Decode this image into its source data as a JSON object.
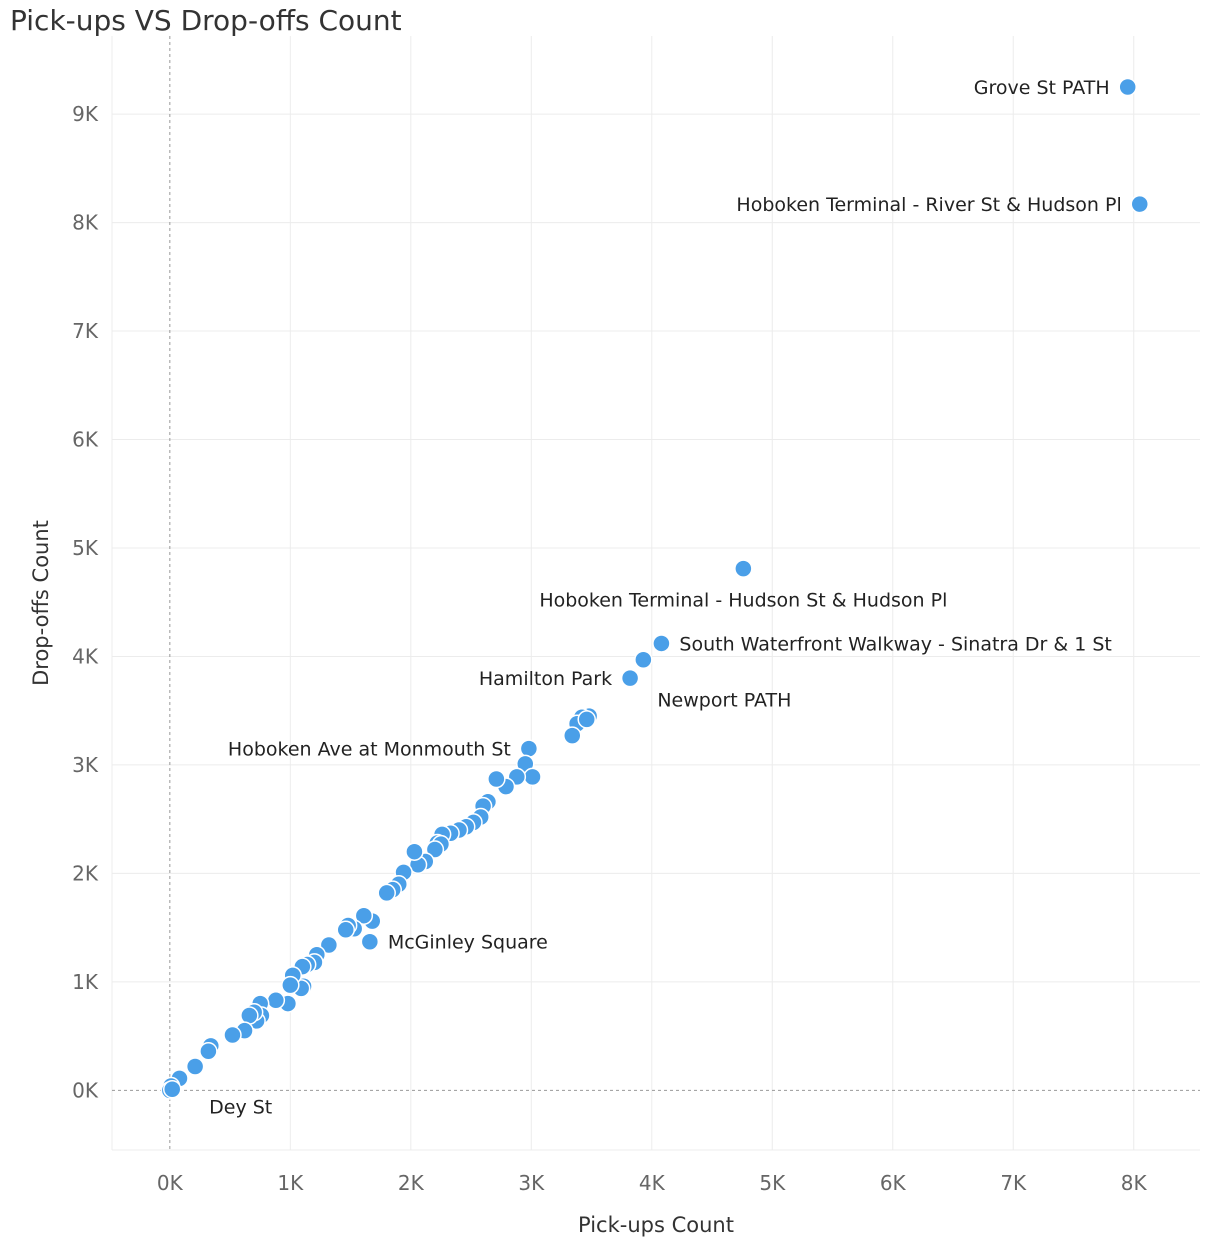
{
  "chart_data": {
    "type": "scatter",
    "title": "Pick-ups VS Drop-offs Count",
    "xlabel": "Pick-ups Count",
    "ylabel": "Drop-offs Count",
    "xlim": [
      -480,
      8550
    ],
    "ylim": [
      -550,
      9720
    ],
    "x_ticks": [
      {
        "value": 0,
        "label": "0K"
      },
      {
        "value": 1000,
        "label": "1K"
      },
      {
        "value": 2000,
        "label": "2K"
      },
      {
        "value": 3000,
        "label": "3K"
      },
      {
        "value": 4000,
        "label": "4K"
      },
      {
        "value": 5000,
        "label": "5K"
      },
      {
        "value": 6000,
        "label": "6K"
      },
      {
        "value": 7000,
        "label": "7K"
      },
      {
        "value": 8000,
        "label": "8K"
      }
    ],
    "y_ticks": [
      {
        "value": 0,
        "label": "0K"
      },
      {
        "value": 1000,
        "label": "1K"
      },
      {
        "value": 2000,
        "label": "2K"
      },
      {
        "value": 3000,
        "label": "3K"
      },
      {
        "value": 4000,
        "label": "4K"
      },
      {
        "value": 5000,
        "label": "5K"
      },
      {
        "value": 6000,
        "label": "6K"
      },
      {
        "value": 7000,
        "label": "7K"
      },
      {
        "value": 8000,
        "label": "8K"
      },
      {
        "value": 9000,
        "label": "9K"
      }
    ],
    "grid": true,
    "legend": "none",
    "color": "#4a9fe8",
    "points": [
      {
        "x": 7950,
        "y": 9250,
        "label": "Grove St PATH",
        "label_anchor": "left"
      },
      {
        "x": 8050,
        "y": 8170,
        "label": "Hoboken Terminal - River St & Hudson Pl",
        "label_anchor": "left"
      },
      {
        "x": 4760,
        "y": 4810,
        "label": "Hoboken Terminal - Hudson St & Hudson Pl",
        "label_anchor": "below"
      },
      {
        "x": 4080,
        "y": 4120,
        "label": "South Waterfront Walkway - Sinatra Dr & 1 St",
        "label_anchor": "right"
      },
      {
        "x": 3820,
        "y": 3800,
        "label": "Hamilton Park",
        "label_anchor": "left"
      },
      {
        "x": 3930,
        "y": 3970,
        "label": "Newport PATH",
        "label_anchor": "below-right"
      },
      {
        "x": 2980,
        "y": 3150,
        "label": "Hoboken Ave at Monmouth St",
        "label_anchor": "left"
      },
      {
        "x": 1660,
        "y": 1370,
        "label": "McGinley Square",
        "label_anchor": "right"
      },
      {
        "x": 210,
        "y": 220,
        "label": "Dey St",
        "label_anchor": "below-right"
      },
      {
        "x": 3480,
        "y": 3450
      },
      {
        "x": 3420,
        "y": 3440
      },
      {
        "x": 3380,
        "y": 3380
      },
      {
        "x": 3460,
        "y": 3420
      },
      {
        "x": 3340,
        "y": 3270
      },
      {
        "x": 2950,
        "y": 3010
      },
      {
        "x": 3010,
        "y": 2890
      },
      {
        "x": 2880,
        "y": 2890
      },
      {
        "x": 2790,
        "y": 2800
      },
      {
        "x": 2710,
        "y": 2870
      },
      {
        "x": 2640,
        "y": 2660
      },
      {
        "x": 2600,
        "y": 2620
      },
      {
        "x": 2580,
        "y": 2520
      },
      {
        "x": 2520,
        "y": 2470
      },
      {
        "x": 2460,
        "y": 2430
      },
      {
        "x": 2400,
        "y": 2400
      },
      {
        "x": 2330,
        "y": 2370
      },
      {
        "x": 2260,
        "y": 2360
      },
      {
        "x": 2220,
        "y": 2280
      },
      {
        "x": 2250,
        "y": 2270
      },
      {
        "x": 2200,
        "y": 2220
      },
      {
        "x": 2120,
        "y": 2110
      },
      {
        "x": 2060,
        "y": 2080
      },
      {
        "x": 2030,
        "y": 2200
      },
      {
        "x": 1940,
        "y": 2010
      },
      {
        "x": 1900,
        "y": 1900
      },
      {
        "x": 1850,
        "y": 1850
      },
      {
        "x": 1800,
        "y": 1820
      },
      {
        "x": 1680,
        "y": 1560
      },
      {
        "x": 1610,
        "y": 1610
      },
      {
        "x": 1530,
        "y": 1490
      },
      {
        "x": 1480,
        "y": 1520
      },
      {
        "x": 1460,
        "y": 1480
      },
      {
        "x": 1320,
        "y": 1340
      },
      {
        "x": 1220,
        "y": 1250
      },
      {
        "x": 1200,
        "y": 1180
      },
      {
        "x": 1140,
        "y": 1160
      },
      {
        "x": 1100,
        "y": 1140
      },
      {
        "x": 1110,
        "y": 960
      },
      {
        "x": 1090,
        "y": 940
      },
      {
        "x": 1020,
        "y": 1060
      },
      {
        "x": 1000,
        "y": 970
      },
      {
        "x": 980,
        "y": 800
      },
      {
        "x": 880,
        "y": 830
      },
      {
        "x": 750,
        "y": 800
      },
      {
        "x": 760,
        "y": 690
      },
      {
        "x": 720,
        "y": 640
      },
      {
        "x": 700,
        "y": 720
      },
      {
        "x": 660,
        "y": 690
      },
      {
        "x": 620,
        "y": 550
      },
      {
        "x": 520,
        "y": 510
      },
      {
        "x": 340,
        "y": 410
      },
      {
        "x": 320,
        "y": 360
      },
      {
        "x": 80,
        "y": 110
      },
      {
        "x": 10,
        "y": 40
      },
      {
        "x": 0,
        "y": 0
      },
      {
        "x": 20,
        "y": 10
      }
    ]
  }
}
